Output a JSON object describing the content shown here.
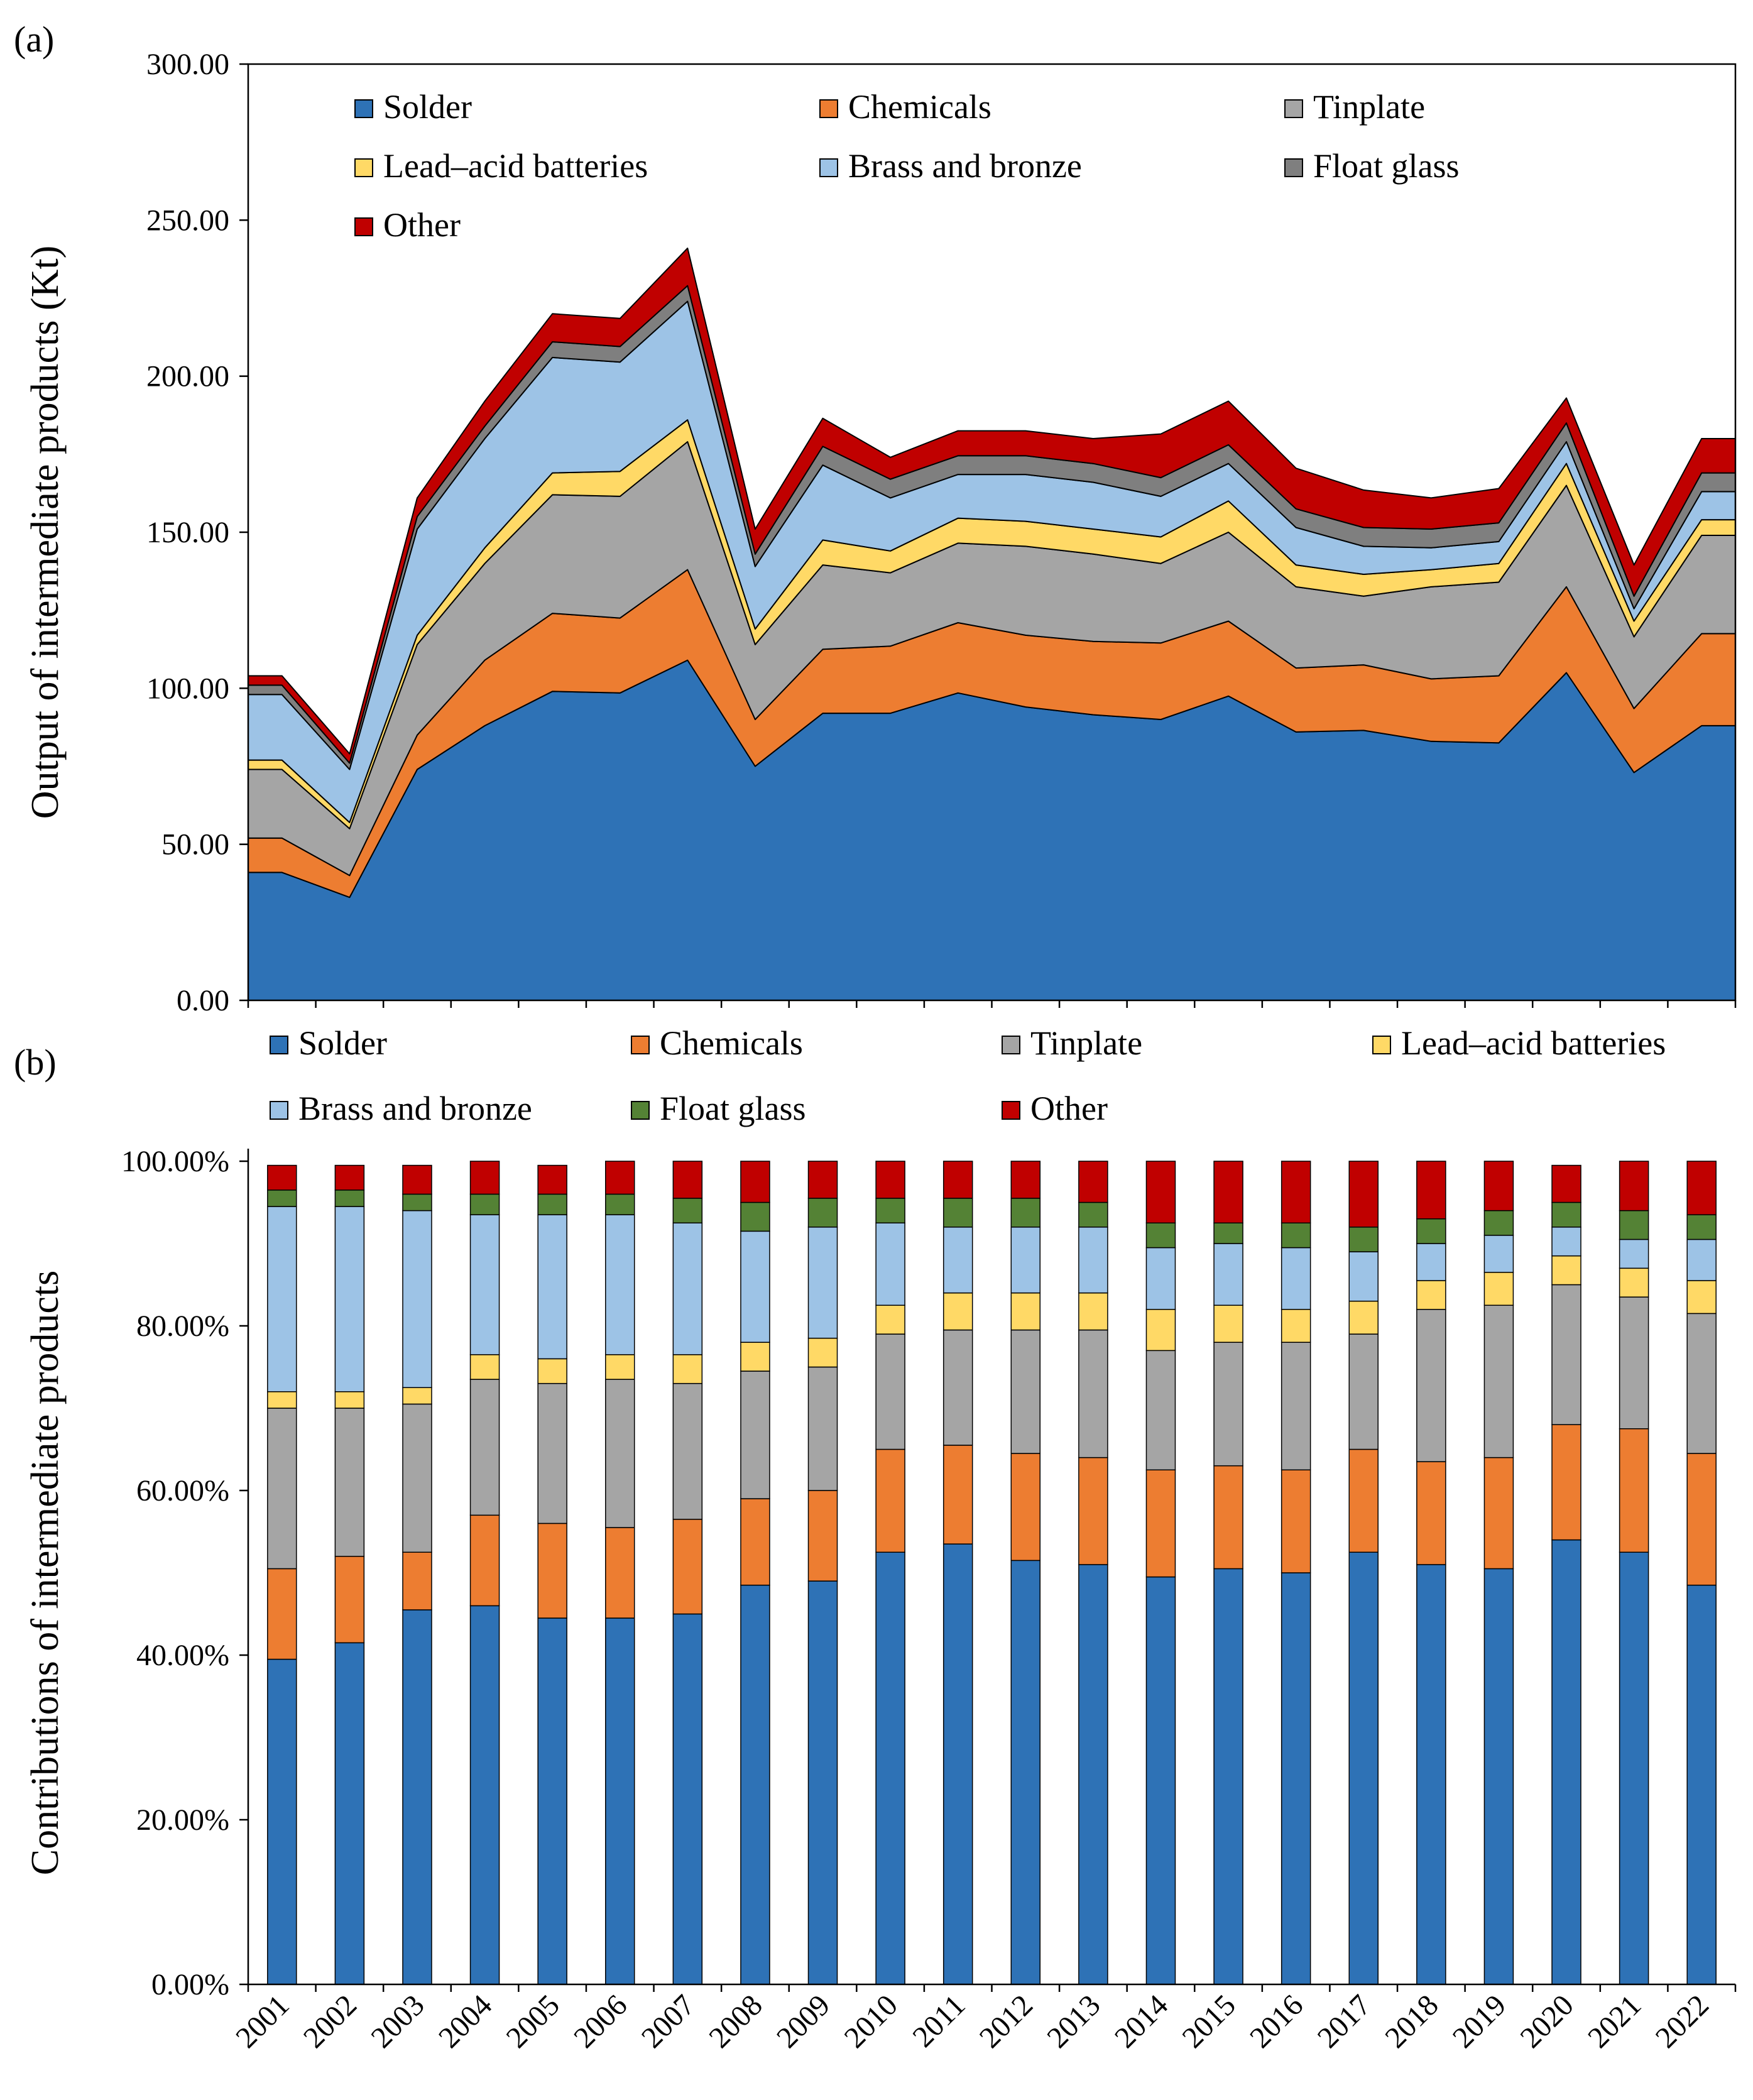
{
  "chart_data": [
    {
      "panel": "(a)",
      "type": "area",
      "stacked": true,
      "title": "",
      "xlabel": "",
      "ylabel": "Output of intermediate products (Kt)",
      "ylim": [
        0,
        300
      ],
      "yticks": [
        "0.00",
        "50.00",
        "100.00",
        "150.00",
        "200.00",
        "250.00",
        "300.00"
      ],
      "grid": false,
      "legend_position": "top",
      "x": [
        "2001",
        "2002",
        "2003",
        "2004",
        "2005",
        "2006",
        "2007",
        "2008",
        "2009",
        "2010",
        "2011",
        "2012",
        "2013",
        "2014",
        "2015",
        "2016",
        "2017",
        "2018",
        "2019",
        "2020",
        "2021",
        "2022"
      ],
      "series": [
        {
          "name": "Solder",
          "color": "#2E72B6",
          "values": [
            41,
            33,
            74,
            88,
            99,
            98.5,
            109,
            75,
            92,
            92,
            98.5,
            94,
            91.5,
            90,
            97.5,
            86,
            86.5,
            83,
            82.5,
            105,
            73,
            88
          ]
        },
        {
          "name": "Chemicals",
          "color": "#ED7D31",
          "values": [
            11,
            7,
            11,
            21,
            25,
            24,
            29,
            15,
            20.5,
            21.5,
            22.5,
            23,
            23.5,
            24.5,
            24,
            20.5,
            21,
            20,
            21.5,
            27.5,
            20.5,
            29.5
          ]
        },
        {
          "name": "Tinplate",
          "color": "#A5A5A5",
          "values": [
            22,
            15,
            29,
            31,
            38,
            39,
            41,
            24,
            27,
            23.5,
            25.5,
            28.5,
            28,
            25.5,
            28.5,
            26,
            22,
            29.5,
            30,
            32.5,
            23,
            31.5
          ]
        },
        {
          "name": "Lead–acid batteries",
          "color": "#FFD966",
          "values": [
            3,
            2,
            3,
            5,
            7,
            8,
            7,
            5,
            8,
            7,
            8,
            8,
            8,
            8.5,
            10,
            7,
            7,
            5.5,
            6,
            7,
            5,
            5
          ]
        },
        {
          "name": "Brass and bronze",
          "color": "#9DC3E6",
          "values": [
            21,
            17,
            34,
            35,
            37,
            35,
            38,
            20,
            24,
            17,
            14,
            15,
            15,
            13,
            12,
            12,
            9,
            7,
            7,
            7,
            4,
            9
          ]
        },
        {
          "name": "Float glass",
          "color": "#7F7F7F",
          "values": [
            3,
            2,
            4,
            4,
            5,
            5,
            5,
            4,
            6,
            6,
            6,
            6,
            6,
            6,
            6,
            6,
            6,
            6,
            6,
            6,
            4,
            6
          ]
        },
        {
          "name": "Other",
          "color": "#C00000",
          "values": [
            3,
            3,
            6,
            8,
            9,
            9,
            12,
            8,
            9,
            7,
            8,
            8,
            8,
            14,
            14,
            13,
            12,
            10,
            11,
            8,
            10,
            11
          ]
        }
      ]
    },
    {
      "panel": "(b)",
      "type": "bar",
      "stacked": true,
      "title": "",
      "xlabel": "",
      "ylabel": "Contributions of intermediate products",
      "ylim": [
        0,
        100
      ],
      "yticks": [
        "0.00%",
        "20.00%",
        "40.00%",
        "60.00%",
        "80.00%",
        "100.00%"
      ],
      "grid": false,
      "legend_position": "top",
      "categories": [
        "2001",
        "2002",
        "2003",
        "2004",
        "2005",
        "2006",
        "2007",
        "2008",
        "2009",
        "2010",
        "2011",
        "2012",
        "2013",
        "2014",
        "2015",
        "2016",
        "2017",
        "2018",
        "2019",
        "2020",
        "2021",
        "2022"
      ],
      "series": [
        {
          "name": "Solder",
          "color": "#2E72B6",
          "values": [
            39.5,
            41.5,
            45.5,
            46,
            44.5,
            44.5,
            45,
            48.5,
            49,
            52.5,
            53.5,
            51.5,
            51,
            49.5,
            50.5,
            50,
            52.5,
            51,
            50.5,
            54,
            52.5,
            48.5
          ]
        },
        {
          "name": "Chemicals",
          "color": "#ED7D31",
          "values": [
            11,
            10.5,
            7,
            11,
            11.5,
            11,
            11.5,
            10.5,
            11,
            12.5,
            12,
            13,
            13,
            13,
            12.5,
            12.5,
            12.5,
            12.5,
            13.5,
            14,
            15,
            16
          ]
        },
        {
          "name": "Tinplate",
          "color": "#A5A5A5",
          "values": [
            19.5,
            18,
            18,
            16.5,
            17,
            18,
            16.5,
            15.5,
            15,
            14,
            14,
            15,
            15.5,
            14.5,
            15,
            15.5,
            14,
            18.5,
            18.5,
            17,
            16,
            17
          ]
        },
        {
          "name": "Lead–acid batteries",
          "color": "#FFD966",
          "values": [
            2,
            2,
            2,
            3,
            3,
            3,
            3.5,
            3.5,
            3.5,
            3.5,
            4.5,
            4.5,
            4.5,
            5,
            4.5,
            4,
            4,
            3.5,
            4,
            3.5,
            3.5,
            4
          ]
        },
        {
          "name": "Brass and bronze",
          "color": "#9DC3E6",
          "values": [
            22.5,
            22.5,
            21.5,
            17,
            17.5,
            17,
            16,
            13.5,
            13.5,
            10,
            8,
            8,
            8,
            7.5,
            7.5,
            7.5,
            6,
            4.5,
            4.5,
            3.5,
            3.5,
            5
          ]
        },
        {
          "name": "Float glass",
          "color": "#548235",
          "values": [
            2,
            2,
            2,
            2.5,
            2.5,
            2.5,
            3,
            3.5,
            3.5,
            3,
            3.5,
            3.5,
            3,
            3,
            2.5,
            3,
            3,
            3,
            3,
            3,
            3.5,
            3
          ]
        },
        {
          "name": "Other",
          "color": "#C00000",
          "values": [
            3,
            3,
            3.5,
            4,
            3.5,
            4,
            4.5,
            5,
            4.5,
            4.5,
            4.5,
            4.5,
            5,
            7.5,
            7.5,
            7.5,
            8,
            7,
            6,
            4.5,
            6,
            6.5
          ]
        }
      ]
    }
  ]
}
